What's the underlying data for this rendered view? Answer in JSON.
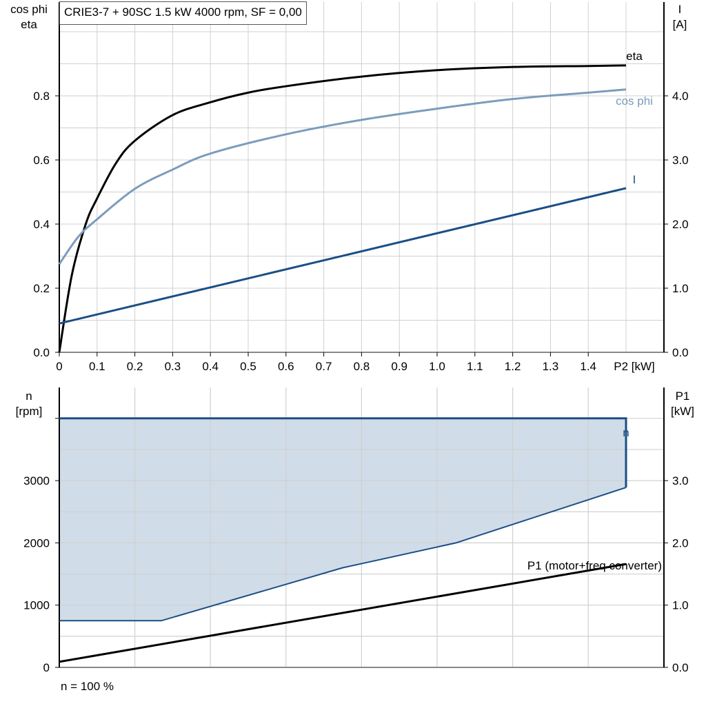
{
  "title": "CRIE3-7 + 90SC   1.5 kW   4000 rpm, SF = 0,00",
  "footer_note": "n = 100 %",
  "colors": {
    "eta": "#000000",
    "cos_phi": "#7b9cbd",
    "I": "#1b4e85",
    "n": "#1b4e85",
    "n_fill": "#d0dce8",
    "P1": "#000000",
    "grid": "#d0d0d0"
  },
  "chart_data": [
    {
      "type": "line",
      "xlabel": "P2 [kW]",
      "ylabel_left": [
        "cos phi",
        "eta"
      ],
      "ylabel_right": [
        "I",
        "[A]"
      ],
      "xlim": [
        0,
        1.5
      ],
      "ylim_left": [
        0,
        1.0
      ],
      "ylim_right": [
        0,
        5.0
      ],
      "x_ticks": [
        "0",
        "0.1",
        "0.2",
        "0.3",
        "0.4",
        "0.5",
        "0.6",
        "0.7",
        "0.8",
        "0.9",
        "1.0",
        "1.1",
        "1.2",
        "1.3",
        "1.4"
      ],
      "y_ticks_left": [
        "0.0",
        "0.2",
        "0.4",
        "0.6",
        "0.8"
      ],
      "y_ticks_right": [
        "0.0",
        "1.0",
        "2.0",
        "3.0",
        "4.0"
      ],
      "grid": true,
      "series": [
        {
          "name": "eta",
          "axis": "left",
          "x": [
            0,
            0.033,
            0.07,
            0.1,
            0.15,
            0.2,
            0.3,
            0.4,
            0.5,
            0.6,
            0.8,
            1.0,
            1.2,
            1.4,
            1.5
          ],
          "y": [
            0,
            0.24,
            0.4,
            0.48,
            0.59,
            0.66,
            0.74,
            0.78,
            0.81,
            0.83,
            0.86,
            0.88,
            0.89,
            0.893,
            0.895
          ]
        },
        {
          "name": "cos phi",
          "axis": "left",
          "x": [
            0,
            0.05,
            0.1,
            0.2,
            0.3,
            0.4,
            0.6,
            0.8,
            1.0,
            1.2,
            1.4,
            1.5
          ],
          "y": [
            0.275,
            0.36,
            0.415,
            0.51,
            0.57,
            0.62,
            0.68,
            0.725,
            0.76,
            0.79,
            0.81,
            0.82
          ]
        },
        {
          "name": "I",
          "axis": "right",
          "x": [
            0,
            1.5
          ],
          "y": [
            0.45,
            2.56
          ]
        }
      ]
    },
    {
      "type": "area",
      "ylabel_left": [
        "n",
        "[rpm]"
      ],
      "ylabel_right": [
        "P1",
        "[kW]"
      ],
      "xlim": [
        0,
        1.5
      ],
      "ylim_left": [
        0,
        4400
      ],
      "ylim_right": [
        0,
        4.4
      ],
      "y_ticks_left": [
        "0",
        "1000",
        "2000",
        "3000"
      ],
      "y_ticks_right": [
        "0.0",
        "1.0",
        "2.0",
        "3.0"
      ],
      "grid": true,
      "series": [
        {
          "name": "n",
          "axis": "left",
          "upper": {
            "x": [
              0,
              1.5
            ],
            "y": [
              4000,
              4000
            ]
          },
          "lower": {
            "x": [
              0,
              0.27,
              0.75,
              1.05,
              1.5
            ],
            "y": [
              750,
              750,
              1600,
              2000,
              2890
            ]
          }
        },
        {
          "name": "P1 (motor+freq converter)",
          "axis": "right",
          "x": [
            0,
            1.5
          ],
          "y": [
            0.09,
            1.66
          ]
        }
      ]
    }
  ]
}
